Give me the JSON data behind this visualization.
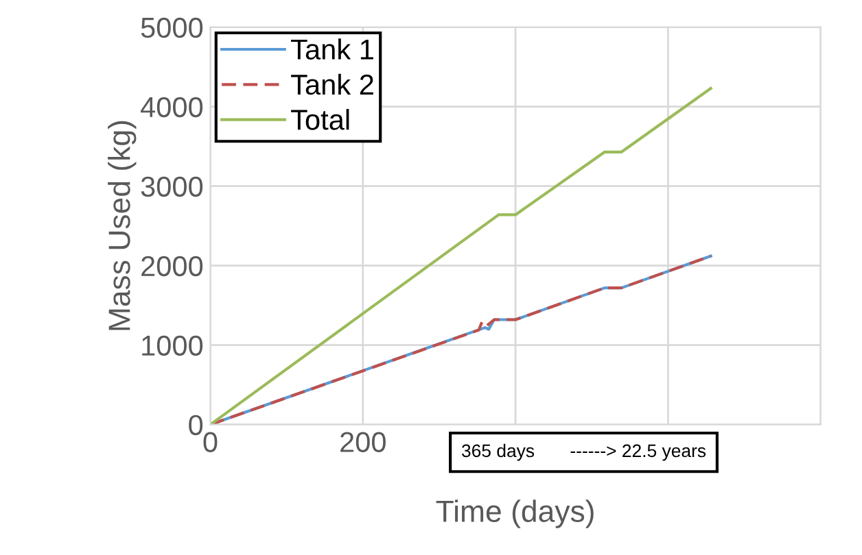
{
  "chart_data": {
    "type": "line",
    "xlabel": "Time (days)",
    "ylabel": "Mass Used (kg)",
    "xlim": [
      0,
      800
    ],
    "xticks": [
      0,
      200,
      {
        "value": 400,
        "label": null
      },
      {
        "value": 600,
        "label": null
      },
      {
        "value": 800,
        "label": null
      }
    ],
    "ylim": [
      0,
      5000
    ],
    "yticks": [
      0,
      1000,
      2000,
      3000,
      4000,
      5000
    ],
    "grid": true,
    "legend": "top left",
    "series": [
      {
        "name": "Tank 1",
        "color": "#5b9bd5",
        "line_style": "solid",
        "x": [
          0,
          360,
          365,
          372,
          400,
          517,
          539,
          656
        ],
        "values": [
          0,
          1220,
          1200,
          1320,
          1320,
          1720,
          1720,
          2120
        ]
      },
      {
        "name": "Tank 2",
        "color": "#c0504d",
        "line_style": "dashed",
        "x": [
          0,
          352,
          356,
          362,
          372,
          400,
          517,
          539,
          656
        ],
        "values": [
          0,
          1190,
          1290,
          1240,
          1320,
          1320,
          1720,
          1720,
          2120
        ]
      },
      {
        "name": "Total",
        "color": "#9bbb59",
        "line_style": "solid",
        "x": [
          0,
          378,
          400,
          517,
          539,
          656
        ],
        "values": [
          0,
          2640,
          2640,
          3430,
          3430,
          4230
        ]
      }
    ],
    "annotations": [
      "365 days       ------> 22.5 years"
    ]
  }
}
